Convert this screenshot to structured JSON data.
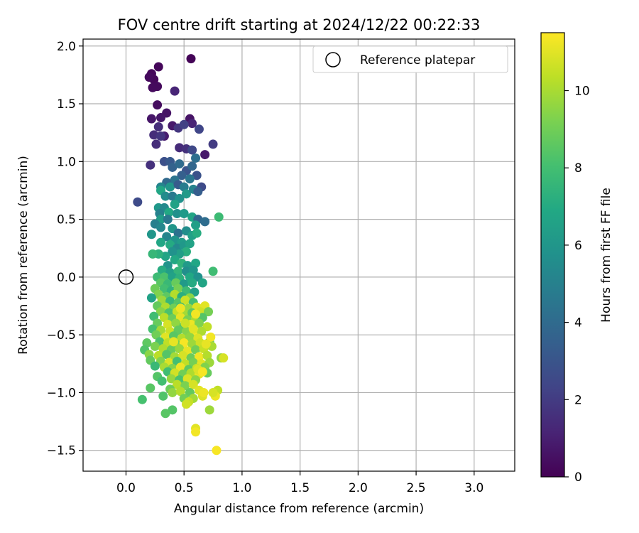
{
  "chart_data": {
    "type": "scatter",
    "title": "FOV centre drift starting at 2024/12/22 00:22:33",
    "xlabel": "Angular distance from reference (arcmin)",
    "ylabel": "Rotation from reference (arcmin)",
    "xlim": [
      -0.37,
      3.35
    ],
    "ylim": [
      -1.68,
      2.06
    ],
    "xticks": [
      "0.0",
      "0.5",
      "1.0",
      "1.5",
      "2.0",
      "2.5",
      "3.0"
    ],
    "yticks": [
      "−1.5",
      "−1.0",
      "−0.5",
      "0.0",
      "0.5",
      "1.0",
      "1.5",
      "2.0"
    ],
    "grid": true,
    "legend": {
      "position": "top-right",
      "entries": [
        "Reference platepar"
      ]
    },
    "reference_point": {
      "x": 0.0,
      "y": 0.0
    },
    "colorbar": {
      "label": "Hours from first FF file",
      "range": [
        0,
        11.5
      ],
      "ticks": [
        "0",
        "2",
        "4",
        "6",
        "8",
        "10"
      ],
      "colormap": "viridis"
    },
    "points": [
      [
        0.56,
        1.89,
        0.1
      ],
      [
        0.28,
        1.82,
        0.2
      ],
      [
        0.22,
        1.76,
        0.2
      ],
      [
        0.24,
        1.71,
        0.2
      ],
      [
        0.2,
        1.73,
        0.3
      ],
      [
        0.27,
        1.65,
        0.3
      ],
      [
        0.23,
        1.64,
        0.3
      ],
      [
        0.42,
        1.61,
        1.2
      ],
      [
        0.27,
        1.49,
        0.4
      ],
      [
        0.35,
        1.42,
        0.6
      ],
      [
        0.22,
        1.37,
        0.7
      ],
      [
        0.3,
        1.38,
        0.7
      ],
      [
        0.55,
        1.37,
        0.6
      ],
      [
        0.57,
        1.33,
        1.2
      ],
      [
        0.4,
        1.31,
        0.8
      ],
      [
        0.45,
        1.29,
        1.8
      ],
      [
        0.5,
        1.32,
        2.2
      ],
      [
        0.63,
        1.28,
        2.4
      ],
      [
        0.28,
        1.3,
        1.5
      ],
      [
        0.33,
        1.22,
        0.9
      ],
      [
        0.24,
        1.23,
        1.5
      ],
      [
        0.3,
        1.22,
        1.8
      ],
      [
        0.26,
        1.15,
        1.5
      ],
      [
        0.46,
        1.12,
        1.4
      ],
      [
        0.52,
        1.11,
        1.6
      ],
      [
        0.75,
        1.15,
        2.0
      ],
      [
        0.57,
        1.1,
        2.5
      ],
      [
        0.68,
        1.06,
        0.8
      ],
      [
        0.21,
        0.97,
        1.6
      ],
      [
        0.33,
        1.0,
        2.8
      ],
      [
        0.38,
        1.0,
        3.2
      ],
      [
        0.4,
        0.95,
        3.6
      ],
      [
        0.46,
        0.98,
        4.0
      ],
      [
        0.52,
        0.92,
        3.0
      ],
      [
        0.48,
        0.88,
        3.5
      ],
      [
        0.57,
        0.96,
        3.8
      ],
      [
        0.6,
        1.03,
        4.2
      ],
      [
        0.61,
        0.88,
        2.9
      ],
      [
        0.55,
        0.85,
        4.5
      ],
      [
        0.42,
        0.84,
        4.4
      ],
      [
        0.35,
        0.82,
        3.9
      ],
      [
        0.3,
        0.78,
        5.2
      ],
      [
        0.38,
        0.78,
        6.0
      ],
      [
        0.45,
        0.8,
        3.3
      ],
      [
        0.5,
        0.78,
        4.8
      ],
      [
        0.52,
        0.72,
        6.2
      ],
      [
        0.58,
        0.76,
        5.1
      ],
      [
        0.65,
        0.78,
        2.6
      ],
      [
        0.62,
        0.74,
        3.4
      ],
      [
        0.3,
        0.75,
        6.8
      ],
      [
        0.34,
        0.7,
        5.5
      ],
      [
        0.4,
        0.7,
        4.7
      ],
      [
        0.46,
        0.68,
        5.8
      ],
      [
        0.42,
        0.63,
        6.6
      ],
      [
        0.28,
        0.6,
        6.1
      ],
      [
        0.1,
        0.65,
        2.6
      ],
      [
        0.33,
        0.6,
        5.4
      ],
      [
        0.37,
        0.56,
        6.9
      ],
      [
        0.29,
        0.55,
        5.0
      ],
      [
        0.3,
        0.5,
        6.3
      ],
      [
        0.36,
        0.5,
        4.6
      ],
      [
        0.44,
        0.55,
        5.7
      ],
      [
        0.5,
        0.55,
        6.2
      ],
      [
        0.57,
        0.52,
        6.7
      ],
      [
        0.62,
        0.5,
        3.7
      ],
      [
        0.8,
        0.52,
        7.8
      ],
      [
        0.68,
        0.48,
        4.1
      ],
      [
        0.6,
        0.45,
        6.4
      ],
      [
        0.25,
        0.46,
        4.9
      ],
      [
        0.3,
        0.43,
        5.3
      ],
      [
        0.4,
        0.42,
        6.0
      ],
      [
        0.45,
        0.38,
        4.3
      ],
      [
        0.52,
        0.4,
        5.6
      ],
      [
        0.57,
        0.36,
        6.5
      ],
      [
        0.61,
        0.38,
        7.1
      ],
      [
        0.22,
        0.37,
        6.0
      ],
      [
        0.35,
        0.35,
        5.2
      ],
      [
        0.42,
        0.32,
        5.9
      ],
      [
        0.48,
        0.3,
        6.3
      ],
      [
        0.3,
        0.3,
        6.8
      ],
      [
        0.38,
        0.28,
        7.0
      ],
      [
        0.44,
        0.25,
        5.4
      ],
      [
        0.5,
        0.27,
        6.1
      ],
      [
        0.55,
        0.29,
        6.6
      ],
      [
        0.52,
        0.22,
        7.2
      ],
      [
        0.46,
        0.2,
        6.4
      ],
      [
        0.4,
        0.22,
        5.8
      ],
      [
        0.34,
        0.18,
        6.7
      ],
      [
        0.28,
        0.2,
        7.3
      ],
      [
        0.23,
        0.2,
        7.6
      ],
      [
        0.42,
        0.15,
        6.9
      ],
      [
        0.48,
        0.12,
        7.4
      ],
      [
        0.36,
        0.1,
        5.9
      ],
      [
        0.53,
        0.1,
        6.2
      ],
      [
        0.6,
        0.12,
        6.8
      ],
      [
        0.31,
        0.06,
        7.1
      ],
      [
        0.38,
        0.04,
        6.4
      ],
      [
        0.45,
        0.05,
        7.5
      ],
      [
        0.52,
        0.05,
        5.6
      ],
      [
        0.58,
        0.06,
        6.0
      ],
      [
        0.75,
        0.05,
        7.9
      ],
      [
        0.27,
        0.0,
        7.8
      ],
      [
        0.33,
        0.0,
        8.2
      ],
      [
        0.4,
        0.0,
        6.6
      ],
      [
        0.46,
        -0.01,
        7.3
      ],
      [
        0.55,
        0.0,
        6.9
      ],
      [
        0.62,
        0.0,
        5.8
      ],
      [
        0.3,
        -0.05,
        8.5
      ],
      [
        0.36,
        -0.06,
        7.7
      ],
      [
        0.43,
        -0.05,
        8.8
      ],
      [
        0.5,
        -0.06,
        6.2
      ],
      [
        0.57,
        -0.05,
        7.0
      ],
      [
        0.66,
        -0.05,
        6.7
      ],
      [
        0.25,
        -0.1,
        8.9
      ],
      [
        0.33,
        -0.1,
        8.0
      ],
      [
        0.39,
        -0.12,
        7.4
      ],
      [
        0.45,
        -0.1,
        9.1
      ],
      [
        0.52,
        -0.12,
        7.8
      ],
      [
        0.59,
        -0.13,
        6.5
      ],
      [
        0.28,
        -0.15,
        9.3
      ],
      [
        0.35,
        -0.17,
        8.6
      ],
      [
        0.42,
        -0.15,
        10.2
      ],
      [
        0.48,
        -0.17,
        7.2
      ],
      [
        0.55,
        -0.18,
        9.5
      ],
      [
        0.22,
        -0.18,
        6.6
      ],
      [
        0.31,
        -0.2,
        9.8
      ],
      [
        0.38,
        -0.21,
        7.6
      ],
      [
        0.45,
        -0.22,
        8.4
      ],
      [
        0.51,
        -0.2,
        10.6
      ],
      [
        0.58,
        -0.22,
        8.0
      ],
      [
        0.27,
        -0.25,
        8.7
      ],
      [
        0.34,
        -0.26,
        10.1
      ],
      [
        0.41,
        -0.27,
        9.0
      ],
      [
        0.47,
        -0.26,
        7.9
      ],
      [
        0.54,
        -0.27,
        9.7
      ],
      [
        0.61,
        -0.26,
        10.9
      ],
      [
        0.68,
        -0.25,
        11.0
      ],
      [
        0.3,
        -0.3,
        9.4
      ],
      [
        0.37,
        -0.31,
        8.2
      ],
      [
        0.44,
        -0.3,
        10.5
      ],
      [
        0.5,
        -0.32,
        9.9
      ],
      [
        0.57,
        -0.31,
        8.6
      ],
      [
        0.64,
        -0.3,
        10.7
      ],
      [
        0.71,
        -0.3,
        9.1
      ],
      [
        0.24,
        -0.34,
        7.9
      ],
      [
        0.33,
        -0.35,
        10.3
      ],
      [
        0.4,
        -0.36,
        8.9
      ],
      [
        0.47,
        -0.35,
        11.1
      ],
      [
        0.53,
        -0.37,
        9.2
      ],
      [
        0.6,
        -0.36,
        10.0
      ],
      [
        0.66,
        -0.35,
        8.4
      ],
      [
        0.27,
        -0.4,
        8.8
      ],
      [
        0.36,
        -0.41,
        10.8
      ],
      [
        0.43,
        -0.4,
        9.6
      ],
      [
        0.5,
        -0.42,
        8.3
      ],
      [
        0.56,
        -0.41,
        11.2
      ],
      [
        0.63,
        -0.4,
        9.3
      ],
      [
        0.7,
        -0.43,
        10.4
      ],
      [
        0.23,
        -0.45,
        8.1
      ],
      [
        0.3,
        -0.46,
        9.9
      ],
      [
        0.38,
        -0.47,
        10.6
      ],
      [
        0.45,
        -0.46,
        8.7
      ],
      [
        0.52,
        -0.47,
        9.4
      ],
      [
        0.59,
        -0.48,
        11.3
      ],
      [
        0.65,
        -0.47,
        10.1
      ],
      [
        0.26,
        -0.5,
        9.0
      ],
      [
        0.34,
        -0.52,
        11.0
      ],
      [
        0.41,
        -0.51,
        8.5
      ],
      [
        0.48,
        -0.53,
        10.2
      ],
      [
        0.55,
        -0.52,
        9.6
      ],
      [
        0.62,
        -0.53,
        10.9
      ],
      [
        0.29,
        -0.56,
        8.2
      ],
      [
        0.36,
        -0.57,
        10.4
      ],
      [
        0.43,
        -0.58,
        9.1
      ],
      [
        0.5,
        -0.57,
        11.4
      ],
      [
        0.57,
        -0.58,
        9.8
      ],
      [
        0.64,
        -0.57,
        10.7
      ],
      [
        0.72,
        -0.56,
        8.9
      ],
      [
        0.74,
        -0.6,
        10.0
      ],
      [
        0.18,
        -0.57,
        8.6
      ],
      [
        0.16,
        -0.63,
        8.3
      ],
      [
        0.25,
        -0.6,
        9.2
      ],
      [
        0.32,
        -0.62,
        10.1
      ],
      [
        0.39,
        -0.63,
        8.8
      ],
      [
        0.46,
        -0.62,
        9.7
      ],
      [
        0.53,
        -0.64,
        11.1
      ],
      [
        0.6,
        -0.63,
        9.0
      ],
      [
        0.67,
        -0.62,
        10.5
      ],
      [
        0.2,
        -0.67,
        9.5
      ],
      [
        0.28,
        -0.68,
        10.3
      ],
      [
        0.35,
        -0.67,
        8.4
      ],
      [
        0.42,
        -0.69,
        9.9
      ],
      [
        0.49,
        -0.68,
        10.8
      ],
      [
        0.56,
        -0.7,
        8.9
      ],
      [
        0.63,
        -0.69,
        11.3
      ],
      [
        0.7,
        -0.68,
        10.2
      ],
      [
        0.82,
        -0.7,
        9.6
      ],
      [
        0.84,
        -0.7,
        10.8
      ],
      [
        0.21,
        -0.72,
        8.7
      ],
      [
        0.3,
        -0.73,
        9.3
      ],
      [
        0.37,
        -0.74,
        10.9
      ],
      [
        0.44,
        -0.73,
        8.0
      ],
      [
        0.51,
        -0.75,
        10.4
      ],
      [
        0.58,
        -0.74,
        9.1
      ],
      [
        0.65,
        -0.75,
        11.0
      ],
      [
        0.72,
        -0.74,
        9.8
      ],
      [
        0.25,
        -0.77,
        7.7
      ],
      [
        0.33,
        -0.78,
        10.0
      ],
      [
        0.4,
        -0.79,
        9.4
      ],
      [
        0.47,
        -0.78,
        11.2
      ],
      [
        0.54,
        -0.8,
        8.6
      ],
      [
        0.61,
        -0.79,
        10.6
      ],
      [
        0.68,
        -0.78,
        9.3
      ],
      [
        0.36,
        -0.82,
        7.9
      ],
      [
        0.42,
        -0.83,
        10.7
      ],
      [
        0.49,
        -0.84,
        9.0
      ],
      [
        0.56,
        -0.83,
        10.1
      ],
      [
        0.63,
        -0.84,
        11.1
      ],
      [
        0.7,
        -0.83,
        8.8
      ],
      [
        0.27,
        -0.86,
        8.4
      ],
      [
        0.39,
        -0.88,
        9.7
      ],
      [
        0.46,
        -0.89,
        8.2
      ],
      [
        0.53,
        -0.88,
        10.9
      ],
      [
        0.6,
        -0.89,
        9.5
      ],
      [
        0.31,
        -0.9,
        8.0
      ],
      [
        0.44,
        -0.93,
        10.3
      ],
      [
        0.51,
        -0.94,
        9.2
      ],
      [
        0.58,
        -0.93,
        10.8
      ],
      [
        0.38,
        -0.97,
        8.9
      ],
      [
        0.21,
        -0.96,
        8.5
      ],
      [
        0.4,
        -1.0,
        9.6
      ],
      [
        0.47,
        -0.99,
        10.2
      ],
      [
        0.55,
        -1.0,
        8.7
      ],
      [
        0.63,
        -0.98,
        11.0
      ],
      [
        0.79,
        -0.98,
        10.4
      ],
      [
        0.32,
        -1.03,
        8.3
      ],
      [
        0.5,
        -1.05,
        9.0
      ],
      [
        0.58,
        -1.05,
        9.9
      ],
      [
        0.66,
        -1.03,
        10.9
      ],
      [
        0.77,
        -1.03,
        11.2
      ],
      [
        0.14,
        -1.06,
        8.1
      ],
      [
        0.54,
        -1.08,
        10.5
      ],
      [
        0.52,
        -1.1,
        10.7
      ],
      [
        0.72,
        -1.15,
        9.8
      ],
      [
        0.4,
        -1.15,
        8.4
      ],
      [
        0.34,
        -1.18,
        8.5
      ],
      [
        0.6,
        -1.31,
        11.0
      ],
      [
        0.6,
        -1.34,
        11.3
      ],
      [
        0.78,
        -1.5,
        11.4
      ],
      [
        0.75,
        -1.0,
        10.8
      ],
      [
        0.67,
        -1.0,
        11.2
      ],
      [
        0.62,
        -0.8,
        10.9
      ],
      [
        0.66,
        -0.82,
        11.4
      ],
      [
        0.73,
        -0.52,
        11.3
      ],
      [
        0.69,
        -0.58,
        11.1
      ],
      [
        0.58,
        -0.45,
        11.0
      ],
      [
        0.47,
        -0.27,
        11.2
      ],
      [
        0.6,
        -0.32,
        11.3
      ],
      [
        0.51,
        -0.4,
        10.6
      ],
      [
        0.41,
        -0.56,
        11.1
      ]
    ]
  }
}
